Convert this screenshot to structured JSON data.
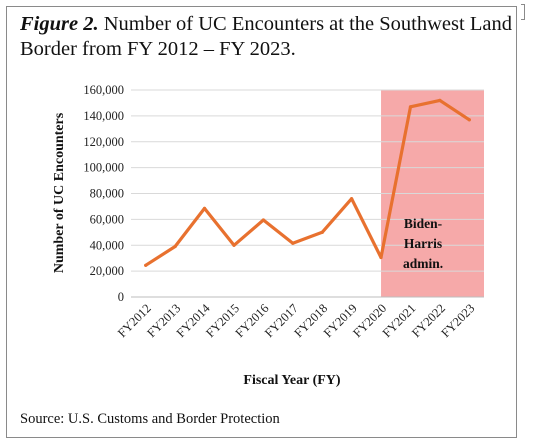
{
  "figure": {
    "label": "Figure 2.",
    "title": "Number of UC Encounters at the Southwest Land Border from FY 2012 – FY 2023.",
    "source": "Source: U.S. Customs and Border Protection"
  },
  "chart_data": {
    "type": "line",
    "xlabel": "Fiscal Year (FY)",
    "ylabel": "Number of UC Encounters",
    "ylim": [
      0,
      160000
    ],
    "yticks": [
      0,
      20000,
      40000,
      60000,
      80000,
      100000,
      120000,
      140000,
      160000
    ],
    "ytick_labels": [
      "0",
      "20,000",
      "40,000",
      "60,000",
      "80,000",
      "100,000",
      "120,000",
      "140,000",
      "160,000"
    ],
    "categories": [
      "FY2012",
      "FY2013",
      "FY2014",
      "FY2015",
      "FY2016",
      "FY2017",
      "FY2018",
      "FY2019",
      "FY2020",
      "FY2021",
      "FY2022",
      "FY2023"
    ],
    "series": [
      {
        "values": [
          24500,
          39000,
          68500,
          40000,
          59500,
          41500,
          50000,
          76000,
          30500,
          147000,
          152000,
          137000
        ]
      }
    ],
    "line_color": "#e8712f",
    "grid": true,
    "highlight": {
      "from": "FY2020",
      "to": "FY2023",
      "color": "#f6a9a9",
      "label_lines": [
        "Biden-",
        "Harris",
        "admin."
      ]
    }
  }
}
